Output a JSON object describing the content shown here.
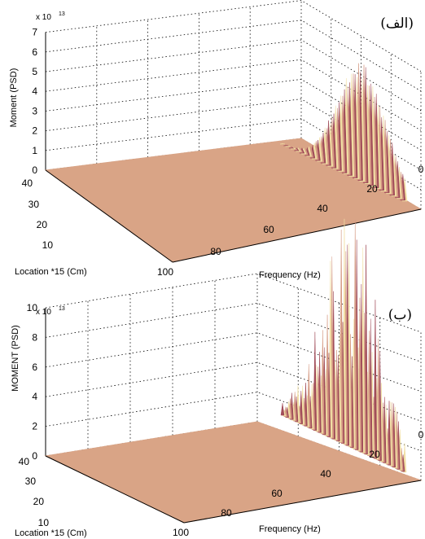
{
  "chart_data": [
    {
      "type": "surface",
      "panel_label": "(الف)",
      "scale_note": "x 10",
      "scale_exponent": "13",
      "zlabel": "Moment (PSD)",
      "xlabel": "Frequency (Hz)",
      "ylabel": "Location *15 (Cm)",
      "z_ticks": [
        "0",
        "1",
        "2",
        "3",
        "4",
        "5",
        "6",
        "7"
      ],
      "x_ticks": [
        "100",
        "80",
        "60",
        "40",
        "20",
        "0"
      ],
      "y_ticks": [
        "40",
        "30",
        "20",
        "10"
      ],
      "zlim": [
        0,
        7
      ],
      "xlim": [
        0,
        100
      ],
      "ylim": [
        0,
        40
      ],
      "peak": {
        "frequency": 7,
        "value": 6.0
      },
      "colors": {
        "surface": "#d9a486",
        "peak_light": "#f1dfa4",
        "peak_dark": "#a14d5a"
      }
    },
    {
      "type": "surface",
      "panel_label": "(ب)",
      "scale_note": "x 10",
      "scale_exponent": "13",
      "zlabel": "MOMENT (PSD)",
      "xlabel": "Frequency (Hz)",
      "ylabel": "Location *15 (Cm)",
      "z_ticks": [
        "0",
        "2",
        "4",
        "6",
        "8",
        "10"
      ],
      "x_ticks": [
        "100",
        "80",
        "60",
        "40",
        "20",
        "0"
      ],
      "y_ticks": [
        "40",
        "30",
        "20",
        "10"
      ],
      "zlim": [
        0,
        10
      ],
      "xlim": [
        0,
        100
      ],
      "ylim": [
        0,
        40
      ],
      "peak": {
        "frequency": 18,
        "value": 9.4
      },
      "colors": {
        "surface": "#d9a486",
        "peak_light": "#f1dfa4",
        "peak_dark": "#a14d5a"
      }
    }
  ]
}
